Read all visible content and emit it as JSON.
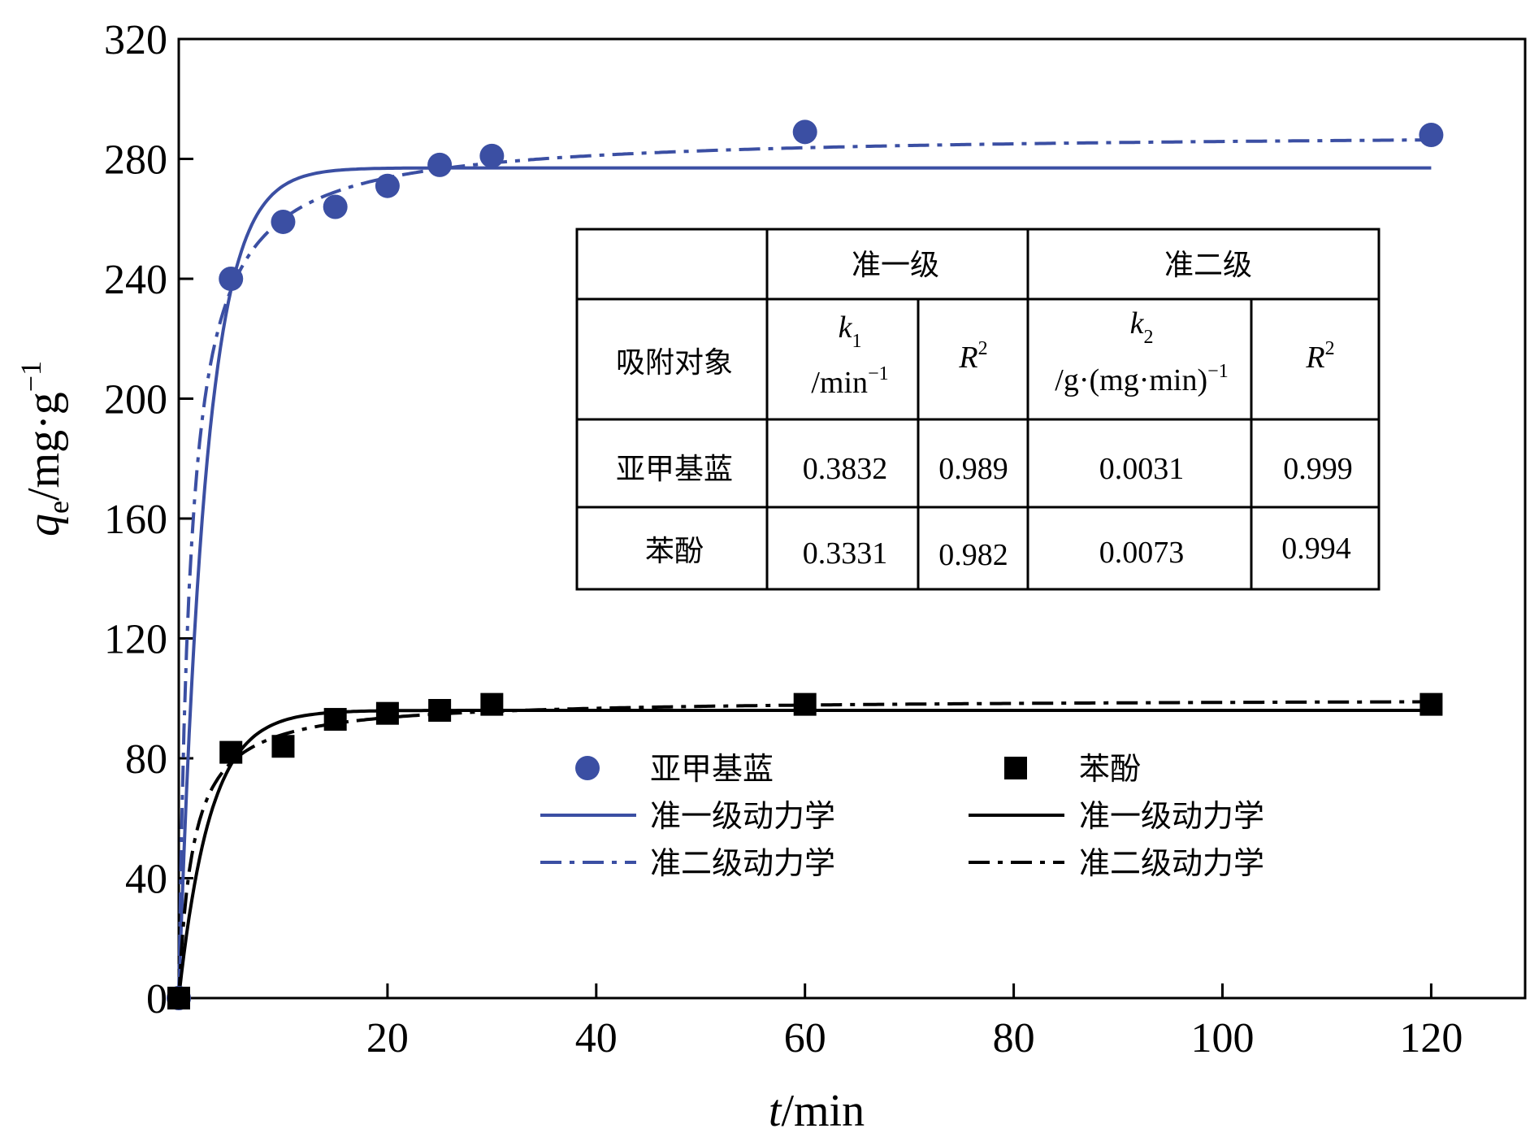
{
  "chart_data": {
    "type": "scatter",
    "xlabel": "t/min",
    "ylabel": "qe/mg·g−1",
    "xlim": [
      0,
      129
    ],
    "ylim": [
      0,
      320
    ],
    "xticks": [
      20,
      40,
      60,
      80,
      100,
      120
    ],
    "yticks": [
      0,
      40,
      80,
      120,
      160,
      200,
      240,
      280,
      320
    ],
    "colors": {
      "blue": "#3b4fa3",
      "black": "#000000"
    },
    "series": [
      {
        "name": "亚甲基蓝",
        "kind": "points",
        "marker": "circle",
        "color": "#3b4fa3",
        "x": [
          0,
          5,
          10,
          15,
          20,
          25,
          30,
          60,
          120
        ],
        "y": [
          0,
          240,
          259,
          264,
          271,
          278,
          281,
          289,
          288
        ]
      },
      {
        "name": "准一级动力学",
        "kind": "pfo",
        "color": "#3b4fa3",
        "qe": 277,
        "k1": 0.3832,
        "xmax": 120
      },
      {
        "name": "准二级动力学",
        "kind": "pso",
        "color": "#3b4fa3",
        "qe": 289,
        "k2": 0.0031,
        "xmax": 120
      },
      {
        "name": "苯酚",
        "kind": "points",
        "marker": "square",
        "color": "#000000",
        "x": [
          0,
          5,
          10,
          15,
          20,
          25,
          30,
          60,
          120
        ],
        "y": [
          0,
          82,
          84,
          93,
          95,
          96,
          98,
          98,
          98
        ]
      },
      {
        "name": "准一级动力学",
        "kind": "pfo",
        "color": "#000000",
        "qe": 96,
        "k1": 0.3331,
        "xmax": 120
      },
      {
        "name": "准二级动力学",
        "kind": "pso",
        "color": "#000000",
        "qe": 100,
        "k2": 0.0073,
        "xmax": 120
      }
    ],
    "legend_position": "bottom-center",
    "table": {
      "header_groups": [
        "准一级",
        "准二级"
      ],
      "row_header": "吸附对象",
      "col_k1": "k",
      "col_k1_sub": "1",
      "col_k1_unit": "/min",
      "col_k1_unit_sup": "−1",
      "col_r2": "R",
      "col_r2_sup": "2",
      "col_k2": "k",
      "col_k2_sub": "2",
      "col_k2_unit": "/g·(mg·min)",
      "col_k2_unit_sup": "−1",
      "rows": [
        {
          "name": "亚甲基蓝",
          "k1": "0.3832",
          "r2a": "0.989",
          "k2": "0.0031",
          "r2b": "0.999"
        },
        {
          "name": "苯酚",
          "k1": "0.3331",
          "r2a": "0.982",
          "k2": "0.0073",
          "r2b": "0.994"
        }
      ]
    }
  }
}
